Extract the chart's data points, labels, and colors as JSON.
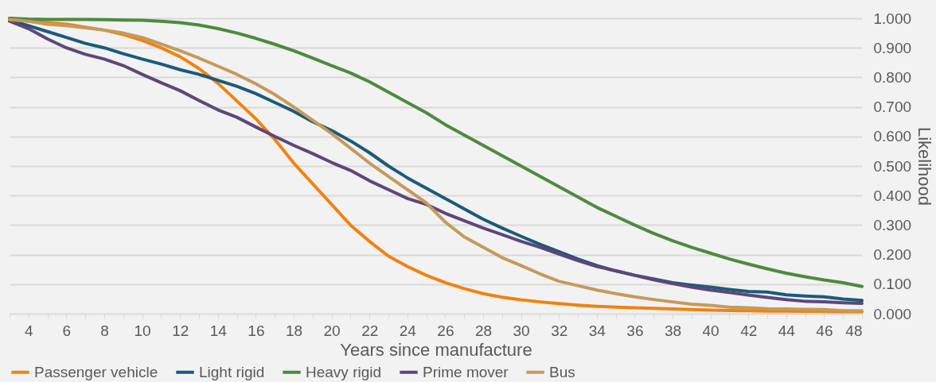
{
  "chart_data": {
    "type": "line",
    "xlabel": "Years since manufacture",
    "ylabel": "Likelihood",
    "x": [
      3,
      4,
      5,
      6,
      7,
      8,
      9,
      10,
      11,
      12,
      13,
      14,
      15,
      16,
      17,
      18,
      19,
      20,
      21,
      22,
      23,
      24,
      25,
      26,
      27,
      28,
      29,
      30,
      31,
      32,
      33,
      34,
      35,
      36,
      37,
      38,
      39,
      40,
      41,
      42,
      43,
      44,
      45,
      46,
      47,
      48
    ],
    "xlim": [
      3,
      48
    ],
    "xticks": [
      {
        "value": 3,
        "label": null
      },
      4,
      {
        "value": 5,
        "label": null
      },
      6,
      {
        "value": 7,
        "label": null
      },
      8,
      {
        "value": 9,
        "label": null
      },
      10,
      {
        "value": 11,
        "label": null
      },
      12,
      {
        "value": 13,
        "label": null
      },
      14,
      {
        "value": 15,
        "label": null
      },
      16,
      {
        "value": 17,
        "label": null
      },
      18,
      {
        "value": 19,
        "label": null
      },
      20,
      {
        "value": 21,
        "label": null
      },
      22,
      {
        "value": 23,
        "label": null
      },
      24,
      {
        "value": 25,
        "label": null
      },
      26,
      {
        "value": 27,
        "label": null
      },
      28,
      {
        "value": 29,
        "label": null
      },
      30,
      {
        "value": 31,
        "label": null
      },
      32,
      {
        "value": 33,
        "label": null
      },
      34,
      {
        "value": 35,
        "label": null
      },
      36,
      {
        "value": 37,
        "label": null
      },
      38,
      {
        "value": 39,
        "label": null
      },
      40,
      {
        "value": 41,
        "label": null
      },
      42,
      {
        "value": 43,
        "label": null
      },
      44,
      {
        "value": 45,
        "label": null
      },
      46,
      {
        "value": 47,
        "label": null
      },
      48
    ],
    "ylim": [
      0,
      1
    ],
    "yticks": [
      {
        "value": 0,
        "label": "0.000"
      },
      {
        "value": 0.1,
        "label": "0.100"
      },
      {
        "value": 0.2,
        "label": "0.200"
      },
      {
        "value": 0.3,
        "label": "0.300"
      },
      {
        "value": 0.4,
        "label": "0.400"
      },
      {
        "value": 0.5,
        "label": "0.500"
      },
      {
        "value": 0.6,
        "label": "0.600"
      },
      {
        "value": 0.7,
        "label": "0.700"
      },
      {
        "value": 0.8,
        "label": "0.800"
      },
      {
        "value": 0.9,
        "label": "0.900"
      },
      {
        "value": 1,
        "label": "1.000"
      }
    ],
    "grid": "y",
    "legend": "bottom",
    "line_style": "solid",
    "series": [
      {
        "name": "Passenger vehicle",
        "color": "#f28210",
        "values": [
          1.0,
          0.99,
          0.985,
          0.98,
          0.97,
          0.96,
          0.945,
          0.925,
          0.9,
          0.87,
          0.83,
          0.78,
          0.72,
          0.66,
          0.59,
          0.51,
          0.44,
          0.37,
          0.3,
          0.245,
          0.195,
          0.16,
          0.13,
          0.105,
          0.085,
          0.068,
          0.056,
          0.047,
          0.04,
          0.034,
          0.029,
          0.025,
          0.022,
          0.02,
          0.018,
          0.016,
          0.014,
          0.012,
          0.011,
          0.01,
          0.009,
          0.009,
          0.008,
          0.008,
          0.007,
          0.007
        ]
      },
      {
        "name": "Light rigid",
        "color": "#1b5a7a",
        "values": [
          0.995,
          0.975,
          0.955,
          0.935,
          0.915,
          0.9,
          0.88,
          0.862,
          0.845,
          0.826,
          0.81,
          0.79,
          0.77,
          0.745,
          0.715,
          0.685,
          0.65,
          0.62,
          0.585,
          0.545,
          0.5,
          0.46,
          0.425,
          0.39,
          0.355,
          0.32,
          0.29,
          0.262,
          0.235,
          0.21,
          0.185,
          0.163,
          0.145,
          0.13,
          0.118,
          0.105,
          0.097,
          0.09,
          0.082,
          0.075,
          0.073,
          0.064,
          0.06,
          0.057,
          0.05,
          0.045
        ]
      },
      {
        "name": "Heavy rigid",
        "color": "#4e8a3e",
        "values": [
          1.0,
          0.997,
          0.996,
          0.996,
          0.996,
          0.995,
          0.994,
          0.993,
          0.99,
          0.985,
          0.977,
          0.965,
          0.95,
          0.932,
          0.912,
          0.89,
          0.865,
          0.84,
          0.815,
          0.785,
          0.75,
          0.715,
          0.68,
          0.64,
          0.605,
          0.57,
          0.535,
          0.5,
          0.465,
          0.43,
          0.395,
          0.36,
          0.33,
          0.3,
          0.272,
          0.247,
          0.225,
          0.205,
          0.185,
          0.168,
          0.152,
          0.137,
          0.125,
          0.114,
          0.105,
          0.092
        ]
      },
      {
        "name": "Prime mover",
        "color": "#5e467a",
        "values": [
          0.99,
          0.965,
          0.93,
          0.9,
          0.878,
          0.862,
          0.84,
          0.81,
          0.782,
          0.755,
          0.722,
          0.69,
          0.665,
          0.632,
          0.6,
          0.57,
          0.542,
          0.512,
          0.485,
          0.45,
          0.42,
          0.39,
          0.37,
          0.34,
          0.315,
          0.29,
          0.268,
          0.245,
          0.225,
          0.202,
          0.18,
          0.16,
          0.145,
          0.13,
          0.115,
          0.102,
          0.09,
          0.08,
          0.072,
          0.063,
          0.055,
          0.048,
          0.042,
          0.04,
          0.037,
          0.035
        ]
      },
      {
        "name": "Bus",
        "color": "#c59a5b",
        "values": [
          0.995,
          0.99,
          0.98,
          0.975,
          0.968,
          0.96,
          0.95,
          0.935,
          0.913,
          0.89,
          0.865,
          0.838,
          0.81,
          0.778,
          0.742,
          0.7,
          0.655,
          0.61,
          0.56,
          0.51,
          0.465,
          0.42,
          0.375,
          0.31,
          0.26,
          0.225,
          0.19,
          0.163,
          0.135,
          0.11,
          0.095,
          0.08,
          0.068,
          0.057,
          0.048,
          0.04,
          0.032,
          0.028,
          0.022,
          0.02,
          0.017,
          0.016,
          0.015,
          0.014,
          0.01,
          0.01
        ]
      }
    ]
  }
}
